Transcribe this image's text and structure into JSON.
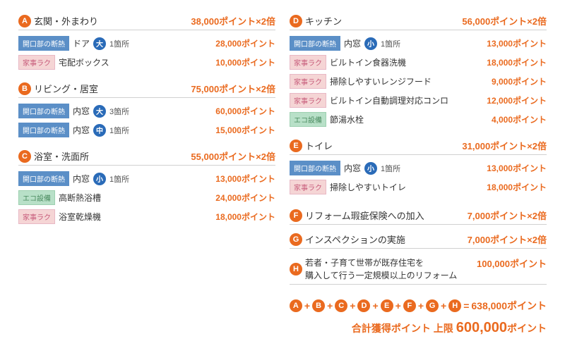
{
  "pointsLabel": "ポイント",
  "multiplier": "×2倍",
  "countUnit": "箇所",
  "left": [
    {
      "id": "A",
      "title": "玄関・外まわり",
      "pts": "38,000",
      "rows": [
        {
          "tag": "insul",
          "tagTxt": "開口部の断熱",
          "item": "ドア",
          "circle": "大",
          "cnt": "1",
          "pts": "28,000"
        },
        {
          "tag": "kaji",
          "tagTxt": "家事ラク",
          "item": "宅配ボックス",
          "pts": "10,000"
        }
      ]
    },
    {
      "id": "B",
      "title": "リビング・居室",
      "pts": "75,000",
      "rows": [
        {
          "tag": "insul",
          "tagTxt": "開口部の断熱",
          "item": "内窓",
          "circle": "大",
          "cnt": "3",
          "pts": "60,000"
        },
        {
          "tag": "insul",
          "tagTxt": "開口部の断熱",
          "item": "内窓",
          "circle": "中",
          "cnt": "1",
          "pts": "15,000"
        }
      ]
    },
    {
      "id": "C",
      "title": "浴室・洗面所",
      "pts": "55,000",
      "rows": [
        {
          "tag": "insul",
          "tagTxt": "開口部の断熱",
          "item": "内窓",
          "circle": "小",
          "cnt": "1",
          "pts": "13,000"
        },
        {
          "tag": "eco",
          "tagTxt": "エコ設備",
          "item": "高断熱浴槽",
          "pts": "24,000"
        },
        {
          "tag": "kaji",
          "tagTxt": "家事ラク",
          "item": "浴室乾燥機",
          "pts": "18,000"
        }
      ]
    }
  ],
  "right": [
    {
      "id": "D",
      "title": "キッチン",
      "pts": "56,000",
      "rows": [
        {
          "tag": "insul",
          "tagTxt": "開口部の断熱",
          "item": "内窓",
          "circle": "小",
          "cnt": "1",
          "pts": "13,000"
        },
        {
          "tag": "kaji",
          "tagTxt": "家事ラク",
          "item": "ビルトイン食器洗機",
          "pts": "18,000"
        },
        {
          "tag": "kaji",
          "tagTxt": "家事ラク",
          "item": "掃除しやすいレンジフード",
          "pts": "9,000"
        },
        {
          "tag": "kaji",
          "tagTxt": "家事ラク",
          "item": "ビルトイン自動調理対応コンロ",
          "pts": "12,000"
        },
        {
          "tag": "eco",
          "tagTxt": "エコ設備",
          "item": "節湯水栓",
          "pts": "4,000"
        }
      ]
    },
    {
      "id": "E",
      "title": "トイレ",
      "pts": "31,000",
      "rows": [
        {
          "tag": "insul",
          "tagTxt": "開口部の断熱",
          "item": "内窓",
          "circle": "小",
          "cnt": "1",
          "pts": "13,000"
        },
        {
          "tag": "kaji",
          "tagTxt": "家事ラク",
          "item": "掃除しやすいトイレ",
          "pts": "18,000"
        }
      ]
    }
  ],
  "simple": [
    {
      "id": "F",
      "title": "リフォーム瑕疵保険への加入",
      "pts": "7,000",
      "mult": true
    },
    {
      "id": "G",
      "title": "インスペクションの実施",
      "pts": "7,000",
      "mult": true
    },
    {
      "id": "H",
      "title": "若者・子育て世帯が既存住宅を\n購入して行う一定規模以上のリフォーム",
      "pts": "100,000",
      "mult": false,
      "multi": true
    }
  ],
  "formula": {
    "ids": [
      "A",
      "B",
      "C",
      "D",
      "E",
      "F",
      "G",
      "H"
    ],
    "result": "638,000"
  },
  "totalLabel": "合計獲得ポイント 上限",
  "totalValue": "600,000"
}
